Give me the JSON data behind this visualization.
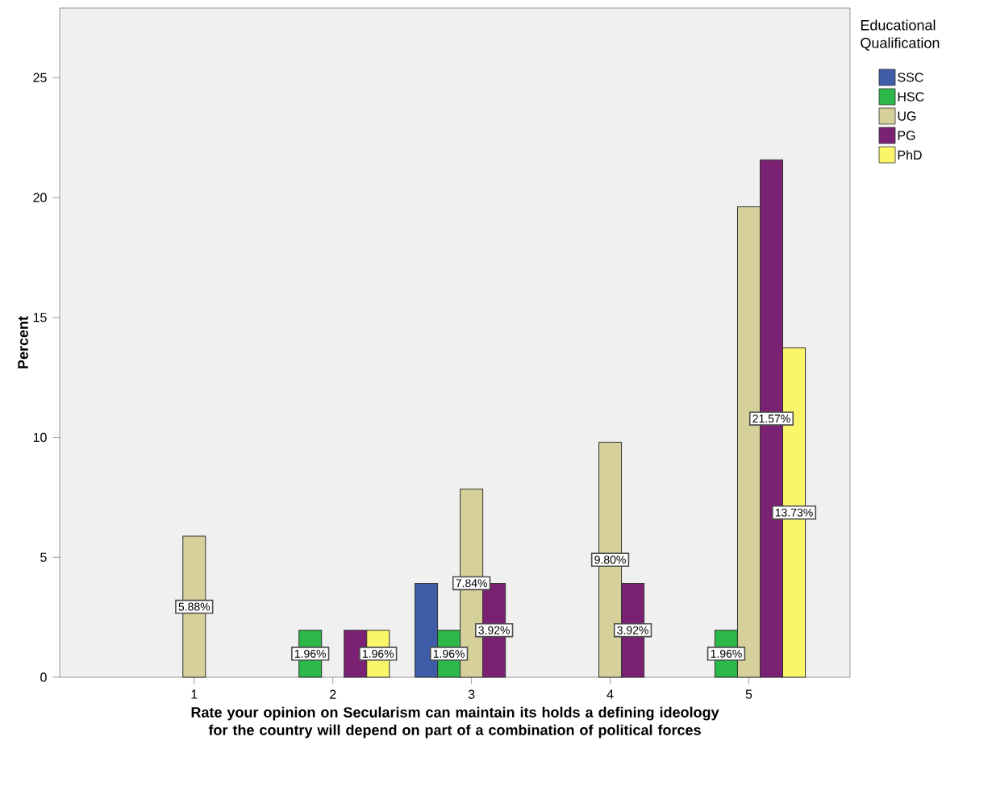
{
  "chart_data": {
    "type": "bar",
    "xlabel": "Rate  your opinion on Secularism can maintain its holds a defining ideology for the country will depend on part of a combination of political forces",
    "ylabel": "Percent",
    "legend_title": "Educational Qualification",
    "categories": [
      "1",
      "2",
      "3",
      "4",
      "5"
    ],
    "series": [
      {
        "name": "SSC",
        "color": "#3e5ca8",
        "values": [
          null,
          null,
          3.92,
          null,
          null
        ],
        "value_labels": [
          null,
          null,
          null,
          null,
          null
        ]
      },
      {
        "name": "HSC",
        "color": "#2db84a",
        "values": [
          null,
          1.96,
          1.96,
          null,
          1.96
        ],
        "value_labels": [
          null,
          "1.96%",
          "1.96%",
          null,
          "1.96%"
        ]
      },
      {
        "name": "UG",
        "color": "#d6d09a",
        "values": [
          5.88,
          null,
          7.84,
          9.8,
          19.61
        ],
        "value_labels": [
          "5.88%",
          null,
          "7.84%",
          "9.80%",
          null
        ]
      },
      {
        "name": "PG",
        "color": "#7b2173",
        "values": [
          null,
          1.96,
          3.92,
          3.92,
          21.57
        ],
        "value_labels": [
          null,
          null,
          "3.92%",
          "3.92%",
          "21.57%"
        ]
      },
      {
        "name": "PhD",
        "color": "#fbf56a",
        "values": [
          null,
          1.96,
          null,
          null,
          13.73
        ],
        "value_labels": [
          null,
          "1.96%",
          null,
          null,
          "13.73%"
        ]
      }
    ],
    "ylim": [
      0,
      27.9
    ],
    "yticks": [
      0,
      5,
      10,
      15,
      20,
      25
    ],
    "legend": "right",
    "grid": false
  }
}
